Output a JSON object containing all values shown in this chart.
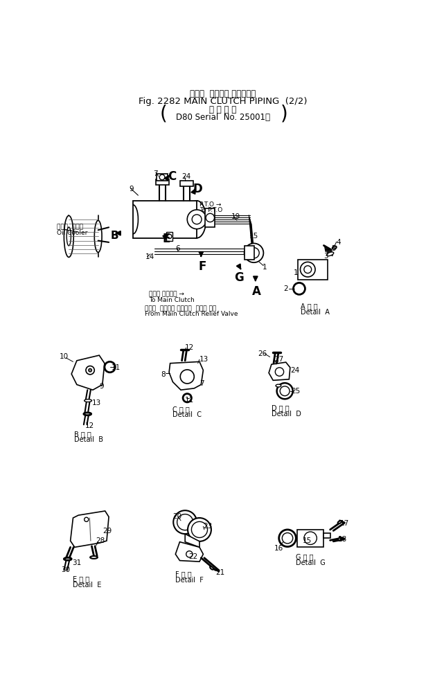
{
  "title_line1": "メイン  クラッチ パイピング",
  "title_line2": "Fig. 2282 MAIN CLUTCH PIPING  (2/2)",
  "title_line3": "適 用 号 機",
  "title_line4": "D80 Serial  No. 25001～",
  "bg_color": "#ffffff",
  "fig_width": 6.28,
  "fig_height": 10.12,
  "dpi": 100
}
